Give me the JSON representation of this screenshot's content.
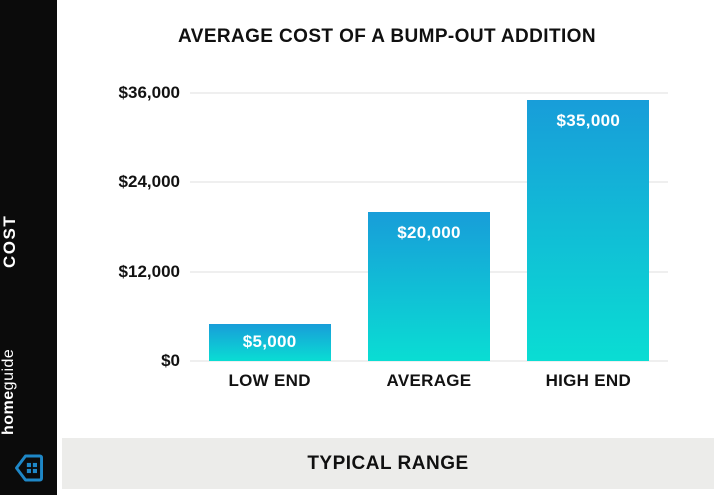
{
  "title": "AVERAGE COST OF A BUMP-OUT ADDITION",
  "sidebar": {
    "vertical_label": "COST",
    "brand_bold": "home",
    "brand_regular": "guide",
    "logo_icon": "homeguide-house-icon"
  },
  "footer": {
    "label": "TYPICAL RANGE"
  },
  "colors": {
    "bar_gradient_top": "#189dd9",
    "bar_gradient_bottom": "#0addd3",
    "sidebar_bg": "#0b0b0b",
    "footer_bg": "#ececea",
    "gridline": "#efefef",
    "logo_blue": "#1e87c7",
    "text_dark": "#101010",
    "bar_label_text": "#ffffff"
  },
  "chart_data": {
    "type": "bar",
    "title": "AVERAGE COST OF A BUMP-OUT ADDITION",
    "categories": [
      "LOW END",
      "AVERAGE",
      "HIGH END"
    ],
    "values": [
      5000,
      20000,
      35000
    ],
    "bar_labels": [
      "$5,000",
      "$20,000",
      "$35,000"
    ],
    "xlabel": "TYPICAL RANGE",
    "ylabel": "COST",
    "ylim": [
      0,
      36000
    ],
    "yticks": [
      0,
      12000,
      24000,
      36000
    ],
    "ytick_labels": [
      "$0",
      "$12,000",
      "$24,000",
      "$36,000"
    ],
    "grid": "horizontal",
    "legend_position": "none"
  }
}
